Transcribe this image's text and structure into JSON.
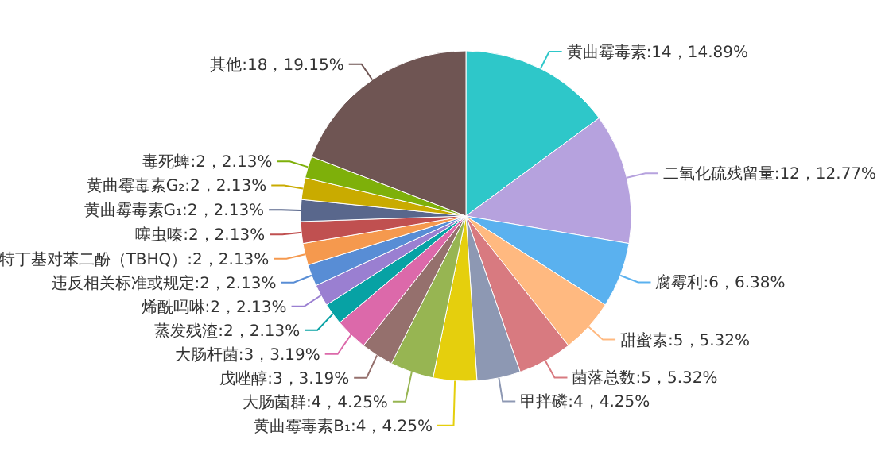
{
  "chart_data": {
    "type": "pie",
    "categories": [
      "黄曲霉毒素",
      "二氧化硫残留量",
      "腐霉利",
      "甜蜜素",
      "菌落总数",
      "甲拌磷",
      "黄曲霉毒素B₁",
      "大肠菌群",
      "戊唑醇",
      "大肠杆菌",
      "蒸发残渣",
      "烯酰吗啉",
      "违反相关标准或规定",
      "特丁基对苯二酚（TBHQ）",
      "噻虫嗪",
      "黄曲霉毒素G₁",
      "黄曲霉毒素G₂",
      "毒死蜱",
      "其他"
    ],
    "values": [
      14,
      12,
      6,
      5,
      5,
      4,
      4,
      4,
      3,
      3,
      2,
      2,
      2,
      2,
      2,
      2,
      2,
      2,
      18
    ],
    "value_labels": [
      "14，14.89%",
      "12，12.77%",
      "6，6.38%",
      "5，5.32%",
      "5，5.32%",
      "4，4.25%",
      "4，4.25%",
      "4，4.25%",
      "3，3.19%",
      "3，3.19%",
      "2，2.13%",
      "2，2.13%",
      "2，2.13%",
      "2，2.13%",
      "2，2.13%",
      "2，2.13%",
      "2，2.13%",
      "2，2.13%",
      "18，19.15%"
    ],
    "colors": [
      "#2ec7c9",
      "#b6a2de",
      "#5ab1ef",
      "#ffb980",
      "#d87a80",
      "#8d98b3",
      "#e5cf0d",
      "#97b552",
      "#95706d",
      "#dc69aa",
      "#07a2a4",
      "#9a7fd1",
      "#588dd5",
      "#f5994e",
      "#c05050",
      "#59678c",
      "#c9ab00",
      "#7eb00a",
      "#6f5553"
    ]
  }
}
